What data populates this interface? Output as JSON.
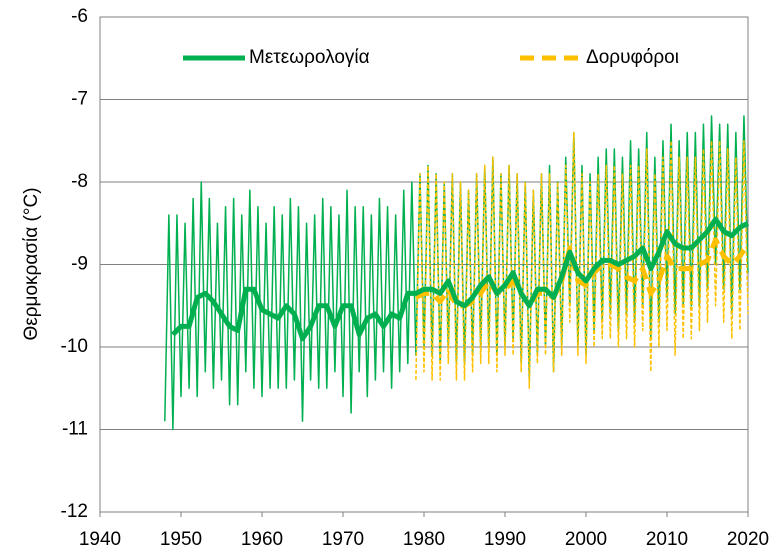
{
  "chart_data": {
    "type": "line",
    "ylabel": "Θερμοκρασία (°C)",
    "xlim": [
      1940,
      2020
    ],
    "xticks": [
      1940,
      1950,
      1960,
      1970,
      1980,
      1990,
      2000,
      2010,
      2020
    ],
    "ylim": [
      -12,
      -6
    ],
    "yticks": [
      -12,
      -11,
      -10,
      -9,
      -8,
      -7,
      -6
    ],
    "grid": true,
    "legend": "top",
    "series": [
      {
        "name": "Μετεωρολογία",
        "color": "#00b050",
        "dashed": false,
        "x": [
          1949,
          1950,
          1951,
          1952,
          1953,
          1954,
          1955,
          1956,
          1957,
          1958,
          1959,
          1960,
          1961,
          1962,
          1963,
          1964,
          1965,
          1966,
          1967,
          1968,
          1969,
          1970,
          1971,
          1972,
          1973,
          1974,
          1975,
          1976,
          1977,
          1978,
          1979,
          1980,
          1981,
          1982,
          1983,
          1984,
          1985,
          1986,
          1987,
          1988,
          1989,
          1990,
          1991,
          1992,
          1993,
          1994,
          1995,
          1996,
          1997,
          1998,
          1999,
          2000,
          2001,
          2002,
          2003,
          2004,
          2005,
          2006,
          2007,
          2008,
          2009,
          2010,
          2011,
          2012,
          2013,
          2014,
          2015,
          2016,
          2017,
          2018,
          2019,
          2020
        ],
        "values": [
          -9.85,
          -9.75,
          -9.75,
          -9.4,
          -9.35,
          -9.45,
          -9.6,
          -9.75,
          -9.8,
          -9.3,
          -9.3,
          -9.55,
          -9.6,
          -9.65,
          -9.5,
          -9.6,
          -9.9,
          -9.75,
          -9.5,
          -9.5,
          -9.75,
          -9.5,
          -9.5,
          -9.85,
          -9.65,
          -9.6,
          -9.75,
          -9.6,
          -9.65,
          -9.35,
          -9.35,
          -9.3,
          -9.3,
          -9.35,
          -9.2,
          -9.45,
          -9.5,
          -9.4,
          -9.25,
          -9.15,
          -9.35,
          -9.25,
          -9.1,
          -9.35,
          -9.5,
          -9.3,
          -9.3,
          -9.4,
          -9.15,
          -8.85,
          -9.1,
          -9.2,
          -9.05,
          -8.95,
          -8.95,
          -9.0,
          -8.95,
          -8.9,
          -8.8,
          -9.05,
          -8.85,
          -8.6,
          -8.75,
          -8.8,
          -8.8,
          -8.7,
          -8.6,
          -8.45,
          -8.6,
          -8.65,
          -8.55,
          -8.5
        ],
        "raw_x": [
          1948,
          1948.5,
          1949,
          1949.5,
          1950,
          1950.5,
          1951,
          1951.5,
          1952,
          1952.5,
          1953,
          1953.5,
          1954,
          1954.5,
          1955,
          1955.5,
          1956,
          1956.5,
          1957,
          1957.5,
          1958,
          1958.5,
          1959,
          1959.5,
          1960,
          1960.5,
          1961,
          1961.5,
          1962,
          1962.5,
          1963,
          1963.5,
          1964,
          1964.5,
          1965,
          1965.5,
          1966,
          1966.5,
          1967,
          1967.5,
          1968,
          1968.5,
          1969,
          1969.5,
          1970,
          1970.5,
          1971,
          1971.5,
          1972,
          1972.5,
          1973,
          1973.5,
          1974,
          1974.5,
          1975,
          1975.5,
          1976,
          1976.5,
          1977,
          1977.5,
          1978,
          1978.5,
          1979,
          1979.5,
          1980,
          1980.5,
          1981,
          1981.5,
          1982,
          1982.5,
          1983,
          1983.5,
          1984,
          1984.5,
          1985,
          1985.5,
          1986,
          1986.5,
          1987,
          1987.5,
          1988,
          1988.5,
          1989,
          1989.5,
          1990,
          1990.5,
          1991,
          1991.5,
          1992,
          1992.5,
          1993,
          1993.5,
          1994,
          1994.5,
          1995,
          1995.5,
          1996,
          1996.5,
          1997,
          1997.5,
          1998,
          1998.5,
          1999,
          1999.5,
          2000,
          2000.5,
          2001,
          2001.5,
          2002,
          2002.5,
          2003,
          2003.5,
          2004,
          2004.5,
          2005,
          2005.5,
          2006,
          2006.5,
          2007,
          2007.5,
          2008,
          2008.5,
          2009,
          2009.5,
          2010,
          2010.5,
          2011,
          2011.5,
          2012,
          2012.5,
          2013,
          2013.5,
          2014,
          2014.5,
          2015,
          2015.5,
          2016,
          2016.5,
          2017,
          2017.5,
          2018,
          2018.5,
          2019,
          2019.5,
          2020
        ],
        "raw_values": [
          -10.9,
          -8.4,
          -11.0,
          -8.4,
          -10.6,
          -8.5,
          -10.5,
          -8.2,
          -10.6,
          -8.0,
          -10.3,
          -8.2,
          -10.5,
          -8.5,
          -10.4,
          -8.3,
          -10.7,
          -8.2,
          -10.7,
          -8.4,
          -10.3,
          -8.1,
          -10.5,
          -8.3,
          -10.6,
          -8.5,
          -10.5,
          -8.3,
          -10.5,
          -8.4,
          -10.5,
          -8.2,
          -10.4,
          -8.3,
          -10.9,
          -8.5,
          -10.4,
          -8.4,
          -10.5,
          -8.2,
          -10.5,
          -8.3,
          -10.3,
          -8.4,
          -10.6,
          -8.1,
          -10.8,
          -8.3,
          -10.3,
          -8.3,
          -10.6,
          -8.4,
          -10.4,
          -8.2,
          -10.3,
          -8.3,
          -10.5,
          -8.4,
          -10.3,
          -8.1,
          -10.2,
          -8.0,
          -10.1,
          -7.9,
          -10.0,
          -7.8,
          -10.1,
          -7.9,
          -10.2,
          -8.0,
          -10.0,
          -7.9,
          -10.2,
          -8.0,
          -10.2,
          -8.1,
          -10.1,
          -7.9,
          -10.0,
          -7.8,
          -10.0,
          -7.7,
          -10.1,
          -7.9,
          -10.0,
          -7.8,
          -9.9,
          -7.9,
          -10.2,
          -8.0,
          -10.4,
          -8.1,
          -10.1,
          -7.9,
          -10.0,
          -7.8,
          -10.3,
          -8.0,
          -10.0,
          -7.7,
          -9.5,
          -7.4,
          -10.0,
          -7.8,
          -10.1,
          -7.9,
          -9.8,
          -7.7,
          -9.7,
          -7.6,
          -9.6,
          -7.6,
          -9.8,
          -7.7,
          -9.6,
          -7.5,
          -9.7,
          -7.6,
          -9.5,
          -7.4,
          -9.9,
          -7.7,
          -9.7,
          -7.5,
          -9.4,
          -7.3,
          -9.6,
          -7.5,
          -9.5,
          -7.4,
          -9.5,
          -7.4,
          -9.5,
          -7.3,
          -9.3,
          -7.2,
          -9.0,
          -7.3,
          -9.3,
          -7.3,
          -9.6,
          -7.4,
          -9.3,
          -7.2,
          -9.1
        ]
      },
      {
        "name": "Δορυφόροι",
        "color": "#ffc000",
        "dashed": true,
        "x": [
          1979,
          1980,
          1981,
          1982,
          1983,
          1984,
          1985,
          1986,
          1987,
          1988,
          1989,
          1990,
          1991,
          1992,
          1993,
          1994,
          1995,
          1996,
          1997,
          1998,
          1999,
          2000,
          2001,
          2002,
          2003,
          2004,
          2005,
          2006,
          2007,
          2008,
          2009,
          2010,
          2011,
          2012,
          2013,
          2014,
          2015,
          2016,
          2017,
          2018,
          2019,
          2020
        ],
        "values": [
          -9.4,
          -9.35,
          -9.35,
          -9.45,
          -9.3,
          -9.5,
          -9.5,
          -9.45,
          -9.35,
          -9.2,
          -9.35,
          -9.3,
          -9.2,
          -9.35,
          -9.5,
          -9.35,
          -9.35,
          -9.4,
          -9.2,
          -8.8,
          -9.2,
          -9.25,
          -9.1,
          -9.0,
          -9.0,
          -9.05,
          -9.15,
          -9.2,
          -9.05,
          -9.35,
          -9.2,
          -8.9,
          -9.05,
          -9.05,
          -9.05,
          -9.0,
          -8.95,
          -8.7,
          -8.9,
          -9.0,
          -8.9,
          -8.75
        ],
        "raw_x": [
          1979,
          1979.5,
          1980,
          1980.5,
          1981,
          1981.5,
          1982,
          1982.5,
          1983,
          1983.5,
          1984,
          1984.5,
          1985,
          1985.5,
          1986,
          1986.5,
          1987,
          1987.5,
          1988,
          1988.5,
          1989,
          1989.5,
          1990,
          1990.5,
          1991,
          1991.5,
          1992,
          1992.5,
          1993,
          1993.5,
          1994,
          1994.5,
          1995,
          1995.5,
          1996,
          1996.5,
          1997,
          1997.5,
          1998,
          1998.5,
          1999,
          1999.5,
          2000,
          2000.5,
          2001,
          2001.5,
          2002,
          2002.5,
          2003,
          2003.5,
          2004,
          2004.5,
          2005,
          2005.5,
          2006,
          2006.5,
          2007,
          2007.5,
          2008,
          2008.5,
          2009,
          2009.5,
          2010,
          2010.5,
          2011,
          2011.5,
          2012,
          2012.5,
          2013,
          2013.5,
          2014,
          2014.5,
          2015,
          2015.5,
          2016,
          2016.5,
          2017,
          2017.5,
          2018,
          2018.5,
          2019,
          2019.5,
          2020
        ],
        "raw_values": [
          -10.4,
          -7.9,
          -10.3,
          -7.8,
          -10.4,
          -7.9,
          -10.4,
          -8.0,
          -10.2,
          -7.9,
          -10.4,
          -8.0,
          -10.4,
          -8.1,
          -10.3,
          -7.9,
          -10.2,
          -7.8,
          -10.2,
          -7.7,
          -10.3,
          -7.9,
          -10.1,
          -7.8,
          -10.1,
          -7.9,
          -10.3,
          -8.0,
          -10.5,
          -8.1,
          -10.2,
          -7.9,
          -10.1,
          -7.9,
          -10.3,
          -8.0,
          -10.1,
          -7.8,
          -9.7,
          -7.4,
          -10.1,
          -7.9,
          -10.2,
          -8.0,
          -10.0,
          -7.9,
          -9.9,
          -7.8,
          -9.9,
          -7.8,
          -10.0,
          -7.9,
          -9.9,
          -7.8,
          -10.0,
          -7.8,
          -9.8,
          -7.6,
          -10.3,
          -7.9,
          -10.0,
          -7.7,
          -9.8,
          -7.5,
          -10.1,
          -7.7,
          -9.9,
          -7.7,
          -9.9,
          -7.7,
          -9.8,
          -7.6,
          -9.7,
          -7.5,
          -9.5,
          -7.5,
          -9.7,
          -7.6,
          -9.9,
          -7.7,
          -9.8,
          -7.5,
          -9.6
        ]
      }
    ]
  }
}
